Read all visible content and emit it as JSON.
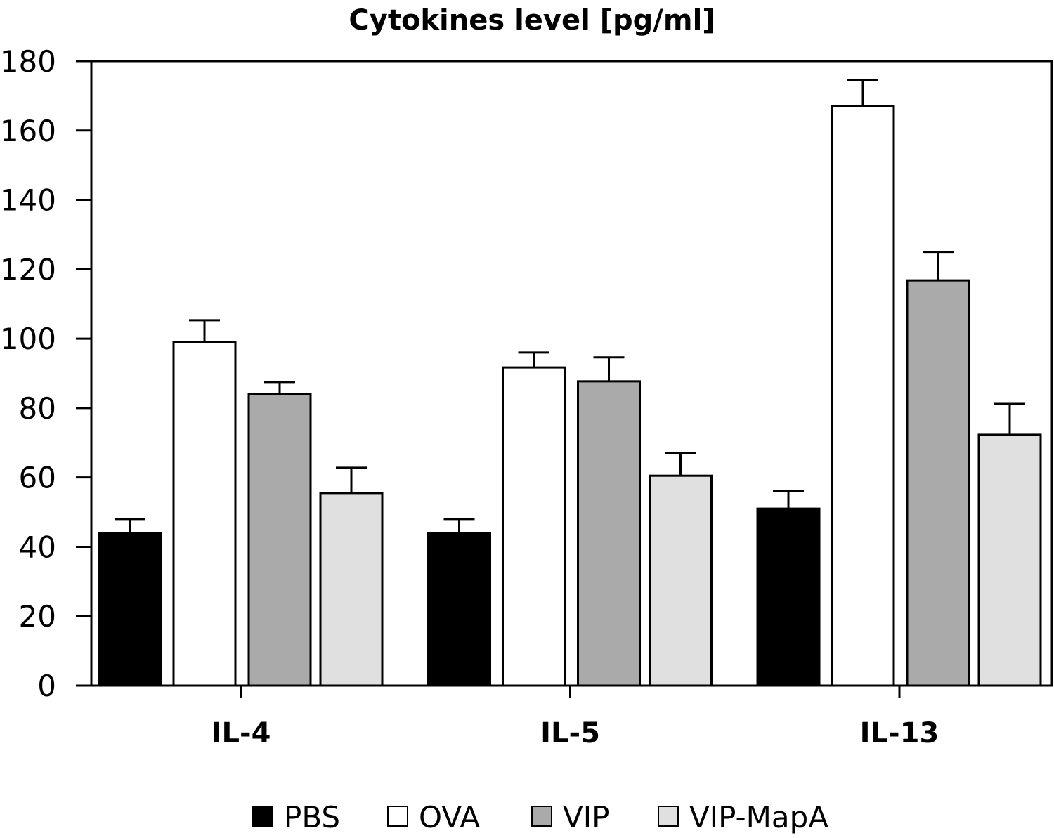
{
  "chart_data": {
    "type": "bar",
    "title": "Cytokines level [pg/ml]",
    "xlabel": "",
    "ylabel": "",
    "ylim": [
      0,
      180
    ],
    "yticks": [
      0,
      20,
      40,
      60,
      80,
      100,
      120,
      140,
      160,
      180
    ],
    "categories": [
      "IL-4",
      "IL-5",
      "IL-13"
    ],
    "grid": false,
    "legend_position": "bottom",
    "error_bars": "upper",
    "series": [
      {
        "name": "PBS",
        "color": "#000000",
        "values": [
          44,
          44,
          51
        ],
        "error_top": [
          48,
          48,
          56
        ]
      },
      {
        "name": "OVA",
        "color": "#ffffff",
        "values": [
          99,
          91.7,
          167
        ],
        "error_top": [
          105.3,
          96,
          174.5
        ]
      },
      {
        "name": "VIP",
        "color": "#aaaaaa",
        "values": [
          84,
          87.7,
          116.8
        ],
        "error_top": [
          87.5,
          94.6,
          125
        ]
      },
      {
        "name": "VIP-MapA",
        "color": "#e0e0e0",
        "values": [
          55.5,
          60.5,
          72.3
        ],
        "error_top": [
          62.8,
          67,
          81.2
        ]
      }
    ]
  }
}
